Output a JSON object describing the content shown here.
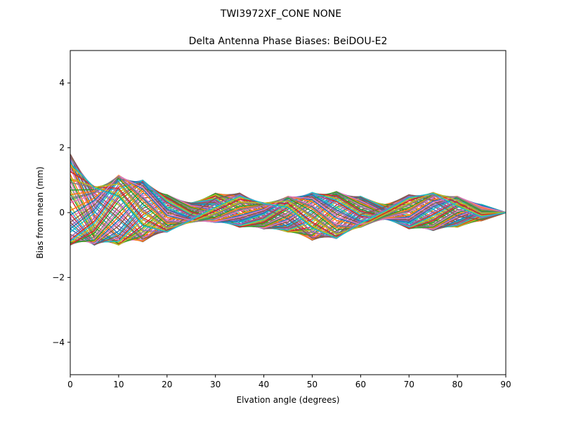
{
  "chart_data": {
    "type": "line",
    "suptitle": "TWI3972XF_CONE  NONE",
    "title": "Delta Antenna Phase Biases: BeiDOU-E2",
    "xlabel": "Elvation angle (degrees)",
    "ylabel": "Bias from mean (mm)",
    "xlim": [
      0,
      90
    ],
    "ylim": [
      -5,
      5
    ],
    "xticks": [
      0,
      10,
      20,
      30,
      40,
      50,
      60,
      70,
      80,
      90
    ],
    "xtick_labels": [
      "0",
      "10",
      "20",
      "30",
      "40",
      "50",
      "60",
      "70",
      "80",
      "90"
    ],
    "yticks": [
      -4,
      -2,
      0,
      2,
      4
    ],
    "ytick_labels": [
      "−4",
      "−2",
      "0",
      "2",
      "4"
    ],
    "grid": false,
    "legend": "none",
    "x": [
      0,
      5,
      10,
      15,
      20,
      25,
      30,
      35,
      40,
      45,
      50,
      55,
      60,
      65,
      70,
      75,
      80,
      85,
      90
    ],
    "series_count": 60,
    "envelope_upper": [
      1.8,
      0.8,
      1.15,
      1.0,
      0.55,
      0.3,
      0.6,
      0.6,
      0.3,
      0.5,
      0.62,
      0.65,
      0.5,
      0.25,
      0.55,
      0.62,
      0.5,
      0.25,
      0.0
    ],
    "envelope_lower": [
      -1.0,
      -1.0,
      -1.0,
      -0.9,
      -0.6,
      -0.3,
      -0.3,
      -0.45,
      -0.5,
      -0.6,
      -0.85,
      -0.8,
      -0.45,
      -0.2,
      -0.5,
      -0.55,
      -0.45,
      -0.25,
      0.0
    ],
    "colors": [
      "#1f77b4",
      "#ff7f0e",
      "#2ca02c",
      "#d62728",
      "#9467bd",
      "#8c564b",
      "#e377c2",
      "#7f7f7f",
      "#bcbd22",
      "#17becf"
    ]
  }
}
